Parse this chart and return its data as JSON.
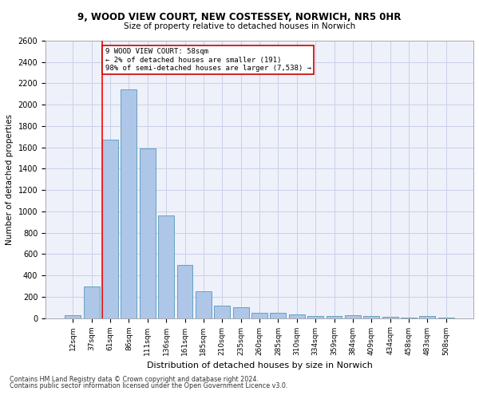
{
  "title1": "9, WOOD VIEW COURT, NEW COSTESSEY, NORWICH, NR5 0HR",
  "title2": "Size of property relative to detached houses in Norwich",
  "xlabel": "Distribution of detached houses by size in Norwich",
  "ylabel": "Number of detached properties",
  "categories": [
    "12sqm",
    "37sqm",
    "61sqm",
    "86sqm",
    "111sqm",
    "136sqm",
    "161sqm",
    "185sqm",
    "210sqm",
    "235sqm",
    "260sqm",
    "285sqm",
    "310sqm",
    "334sqm",
    "359sqm",
    "384sqm",
    "409sqm",
    "434sqm",
    "458sqm",
    "483sqm",
    "508sqm"
  ],
  "values": [
    25,
    300,
    1670,
    2140,
    1590,
    960,
    500,
    250,
    120,
    100,
    50,
    50,
    35,
    20,
    20,
    30,
    20,
    10,
    5,
    20,
    5
  ],
  "bar_color": "#aec6e8",
  "bar_edge_color": "#5599bb",
  "bar_edge_width": 0.6,
  "grid_color": "#c8d0e8",
  "background_color": "#eef1fa",
  "red_line_bin_index": 2,
  "red_line_label_title": "9 WOOD VIEW COURT: 58sqm",
  "red_line_label_line2": "← 2% of detached houses are smaller (191)",
  "red_line_label_line3": "98% of semi-detached houses are larger (7,538) →",
  "annotation_box_color": "#ffffff",
  "annotation_box_edge": "#cc0000",
  "ylim": [
    0,
    2600
  ],
  "yticks": [
    0,
    200,
    400,
    600,
    800,
    1000,
    1200,
    1400,
    1600,
    1800,
    2000,
    2200,
    2400,
    2600
  ],
  "footnote1": "Contains HM Land Registry data © Crown copyright and database right 2024.",
  "footnote2": "Contains public sector information licensed under the Open Government Licence v3.0."
}
